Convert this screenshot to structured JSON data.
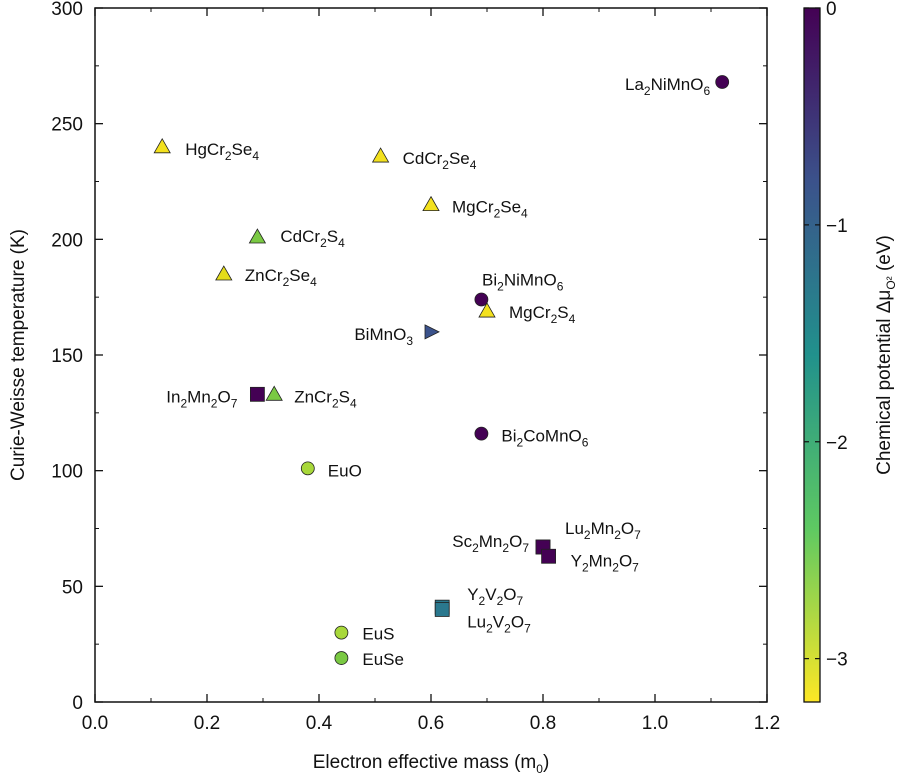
{
  "chart_data": {
    "type": "scatter",
    "xlabel": "Electron effective mass (m0)",
    "ylabel": "Curie-Weisse temperature (K)",
    "xlim": [
      0.0,
      1.2
    ],
    "ylim": [
      0,
      300
    ],
    "xticks": [
      0.0,
      0.2,
      0.4,
      0.6,
      0.8,
      1.0,
      1.2
    ],
    "xtick_labels": [
      "0.0",
      "0.2",
      "0.4",
      "0.6",
      "0.8",
      "1.0",
      "1.2"
    ],
    "yticks": [
      0,
      50,
      100,
      150,
      200,
      250,
      300
    ],
    "ytick_labels": [
      "0",
      "50",
      "100",
      "150",
      "200",
      "250",
      "300"
    ],
    "grid": false,
    "colorbar": {
      "label": "Chemical potential Δμ",
      "label_sub": "O²",
      "label_unit": "(eV)",
      "range": [
        -3.2,
        0
      ],
      "ticks": [
        0,
        -1,
        -2,
        -3
      ],
      "tick_labels": [
        "0",
        "−1",
        "−2",
        "−3"
      ],
      "colormap": "viridis",
      "stops": [
        "#440154",
        "#3b528b",
        "#21918c",
        "#5ec962",
        "#fde725"
      ]
    },
    "points": [
      {
        "label": "La2NiMnO6",
        "x": 1.12,
        "y": 268,
        "marker": "circle",
        "color": "#440154"
      },
      {
        "label": "HgCr2Se4",
        "x": 0.12,
        "y": 240,
        "marker": "triangle-up",
        "color": "#f3e11e"
      },
      {
        "label": "CdCr2Se4",
        "x": 0.51,
        "y": 236,
        "marker": "triangle-up",
        "color": "#f3e11e"
      },
      {
        "label": "MgCr2Se4",
        "x": 0.6,
        "y": 215,
        "marker": "triangle-up",
        "color": "#f3e11e"
      },
      {
        "label": "CdCr2S4",
        "x": 0.29,
        "y": 201,
        "marker": "triangle-up",
        "color": "#7ac943"
      },
      {
        "label": "ZnCr2Se4",
        "x": 0.23,
        "y": 185,
        "marker": "triangle-up",
        "color": "#e4dc1a"
      },
      {
        "label": "Bi2NiMnO6",
        "x": 0.69,
        "y": 174,
        "marker": "circle",
        "color": "#440154"
      },
      {
        "label": "MgCr2S4",
        "x": 0.7,
        "y": 169,
        "marker": "triangle-up",
        "color": "#f3e11e"
      },
      {
        "label": "BiMnO3",
        "x": 0.6,
        "y": 160,
        "marker": "triangle-right",
        "color": "#3b528b"
      },
      {
        "label": "In2Mn2O7",
        "x": 0.29,
        "y": 133,
        "marker": "square",
        "color": "#440154"
      },
      {
        "label": "ZnCr2S4",
        "x": 0.32,
        "y": 133,
        "marker": "triangle-up",
        "color": "#7ac943"
      },
      {
        "label": "Bi2CoMnO6",
        "x": 0.69,
        "y": 116,
        "marker": "circle",
        "color": "#440154"
      },
      {
        "label": "EuO",
        "x": 0.38,
        "y": 101,
        "marker": "circle",
        "color": "#a8d83a"
      },
      {
        "label": "Lu2Mn2O7",
        "x": 0.8,
        "y": 67,
        "marker": "square",
        "color": "#440154"
      },
      {
        "label": "Sc2Mn2O7",
        "x": 0.8,
        "y": 67,
        "marker": "square",
        "color": "#440154"
      },
      {
        "label": "Y2Mn2O7",
        "x": 0.81,
        "y": 63,
        "marker": "square",
        "color": "#440154"
      },
      {
        "label": "Y2V2O7",
        "x": 0.62,
        "y": 41,
        "marker": "square",
        "color": "#2a788e"
      },
      {
        "label": "Lu2V2O7",
        "x": 0.62,
        "y": 40,
        "marker": "square",
        "color": "#2a788e"
      },
      {
        "label": "EuS",
        "x": 0.44,
        "y": 30,
        "marker": "circle",
        "color": "#a8d83a"
      },
      {
        "label": "EuSe",
        "x": 0.44,
        "y": 19,
        "marker": "circle",
        "color": "#7ac943"
      }
    ]
  }
}
